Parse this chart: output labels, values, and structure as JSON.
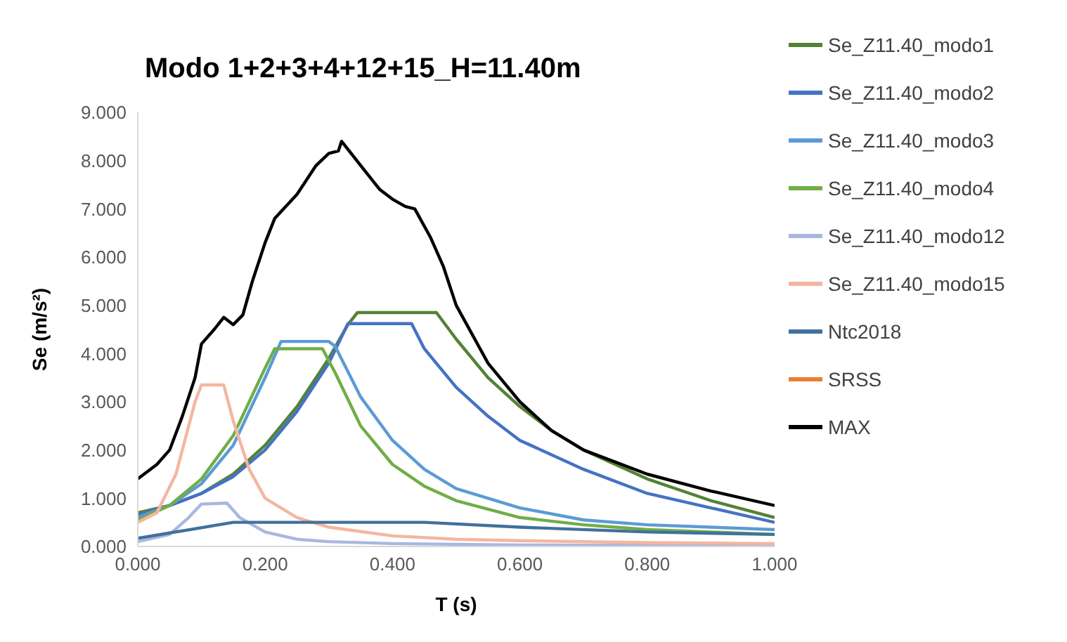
{
  "chart_data": {
    "type": "line",
    "title": "Modo 1+2+3+4+12+15_H=11.40m",
    "xlabel": "T (s)",
    "ylabel": "Se (m/s²)",
    "xlim": [
      0,
      1
    ],
    "ylim": [
      0,
      9
    ],
    "xticks": [
      {
        "value": 0,
        "label": "0.000"
      },
      {
        "value": 0.2,
        "label": "0.200"
      },
      {
        "value": 0.4,
        "label": "0.400"
      },
      {
        "value": 0.6,
        "label": "0.600"
      },
      {
        "value": 0.8,
        "label": "0.800"
      },
      {
        "value": 1,
        "label": "1.000"
      }
    ],
    "yticks": [
      {
        "value": 0,
        "label": "0.000"
      },
      {
        "value": 1,
        "label": "1.000"
      },
      {
        "value": 2,
        "label": "2.000"
      },
      {
        "value": 3,
        "label": "3.000"
      },
      {
        "value": 4,
        "label": "4.000"
      },
      {
        "value": 5,
        "label": "5.000"
      },
      {
        "value": 6,
        "label": "6.000"
      },
      {
        "value": 7,
        "label": "7.000"
      },
      {
        "value": 8,
        "label": "8.000"
      },
      {
        "value": 9,
        "label": "9.000"
      }
    ],
    "grid": false,
    "legend": "right",
    "marker": "none",
    "line_style": "solid",
    "series": [
      {
        "name": "Se_Z11.40_modo1",
        "color": "#548235",
        "x": [
          0,
          0.05,
          0.1,
          0.15,
          0.2,
          0.25,
          0.3,
          0.33,
          0.345,
          0.469,
          0.5,
          0.55,
          0.6,
          0.65,
          0.7,
          0.8,
          0.9,
          1.0
        ],
        "values": [
          0.7,
          0.85,
          1.1,
          1.5,
          2.1,
          2.9,
          3.9,
          4.6,
          4.85,
          4.85,
          4.3,
          3.5,
          2.9,
          2.4,
          2.0,
          1.4,
          0.95,
          0.6
        ]
      },
      {
        "name": "Se_Z11.40_modo2",
        "color": "#4472c4",
        "x": [
          0,
          0.05,
          0.1,
          0.15,
          0.2,
          0.25,
          0.3,
          0.33,
          0.43,
          0.45,
          0.5,
          0.55,
          0.6,
          0.7,
          0.8,
          0.9,
          1.0
        ],
        "values": [
          0.65,
          0.85,
          1.1,
          1.45,
          2.0,
          2.8,
          3.8,
          4.62,
          4.62,
          4.1,
          3.3,
          2.7,
          2.2,
          1.6,
          1.1,
          0.8,
          0.5
        ]
      },
      {
        "name": "Se_Z11.40_modo3",
        "color": "#5b9bd5",
        "x": [
          0,
          0.05,
          0.1,
          0.15,
          0.2,
          0.225,
          0.3,
          0.31,
          0.35,
          0.4,
          0.45,
          0.5,
          0.6,
          0.7,
          0.8,
          1.0
        ],
        "values": [
          0.6,
          0.85,
          1.3,
          2.1,
          3.5,
          4.25,
          4.25,
          4.15,
          3.1,
          2.2,
          1.6,
          1.2,
          0.8,
          0.55,
          0.45,
          0.35
        ]
      },
      {
        "name": "Se_Z11.40_modo4",
        "color": "#70ad47",
        "x": [
          0,
          0.05,
          0.1,
          0.15,
          0.2,
          0.215,
          0.29,
          0.31,
          0.35,
          0.4,
          0.45,
          0.5,
          0.6,
          0.7,
          0.8,
          1.0
        ],
        "values": [
          0.55,
          0.85,
          1.4,
          2.3,
          3.7,
          4.1,
          4.1,
          3.6,
          2.5,
          1.7,
          1.25,
          0.95,
          0.6,
          0.45,
          0.35,
          0.25
        ]
      },
      {
        "name": "Se_Z11.40_modo12",
        "color": "#a9b7e0",
        "x": [
          0,
          0.05,
          0.08,
          0.1,
          0.14,
          0.16,
          0.2,
          0.25,
          0.3,
          0.4,
          0.6,
          1.0
        ],
        "values": [
          0.1,
          0.25,
          0.6,
          0.88,
          0.9,
          0.6,
          0.3,
          0.15,
          0.1,
          0.06,
          0.03,
          0.02
        ]
      },
      {
        "name": "Se_Z11.40_modo15",
        "color": "#f4b6a0",
        "x": [
          0,
          0.03,
          0.06,
          0.09,
          0.1,
          0.135,
          0.15,
          0.175,
          0.2,
          0.25,
          0.3,
          0.4,
          0.5,
          0.6,
          0.8,
          1.0
        ],
        "values": [
          0.5,
          0.7,
          1.5,
          3.0,
          3.35,
          3.35,
          2.6,
          1.6,
          1.0,
          0.6,
          0.4,
          0.22,
          0.15,
          0.12,
          0.08,
          0.06
        ]
      },
      {
        "name": "Ntc2018",
        "color": "#41719c",
        "x": [
          0,
          0.15,
          0.45,
          0.6,
          0.8,
          1.0
        ],
        "values": [
          0.17,
          0.5,
          0.5,
          0.4,
          0.3,
          0.25
        ]
      },
      {
        "name": "SRSS",
        "color": "#ed7d31"
      },
      {
        "name": "MAX",
        "color": "#000000",
        "x": [
          0,
          0.03,
          0.05,
          0.07,
          0.09,
          0.1,
          0.12,
          0.135,
          0.15,
          0.165,
          0.18,
          0.2,
          0.215,
          0.25,
          0.28,
          0.3,
          0.315,
          0.32,
          0.35,
          0.38,
          0.4,
          0.42,
          0.435,
          0.46,
          0.48,
          0.5,
          0.55,
          0.6,
          0.65,
          0.7,
          0.8,
          0.9,
          1.0
        ],
        "values": [
          1.4,
          1.7,
          2.0,
          2.7,
          3.5,
          4.2,
          4.5,
          4.75,
          4.6,
          4.8,
          5.5,
          6.3,
          6.8,
          7.3,
          7.9,
          8.15,
          8.2,
          8.4,
          7.9,
          7.4,
          7.2,
          7.05,
          7.0,
          6.4,
          5.8,
          5.0,
          3.8,
          3.0,
          2.4,
          2.0,
          1.5,
          1.15,
          0.85
        ]
      }
    ]
  }
}
